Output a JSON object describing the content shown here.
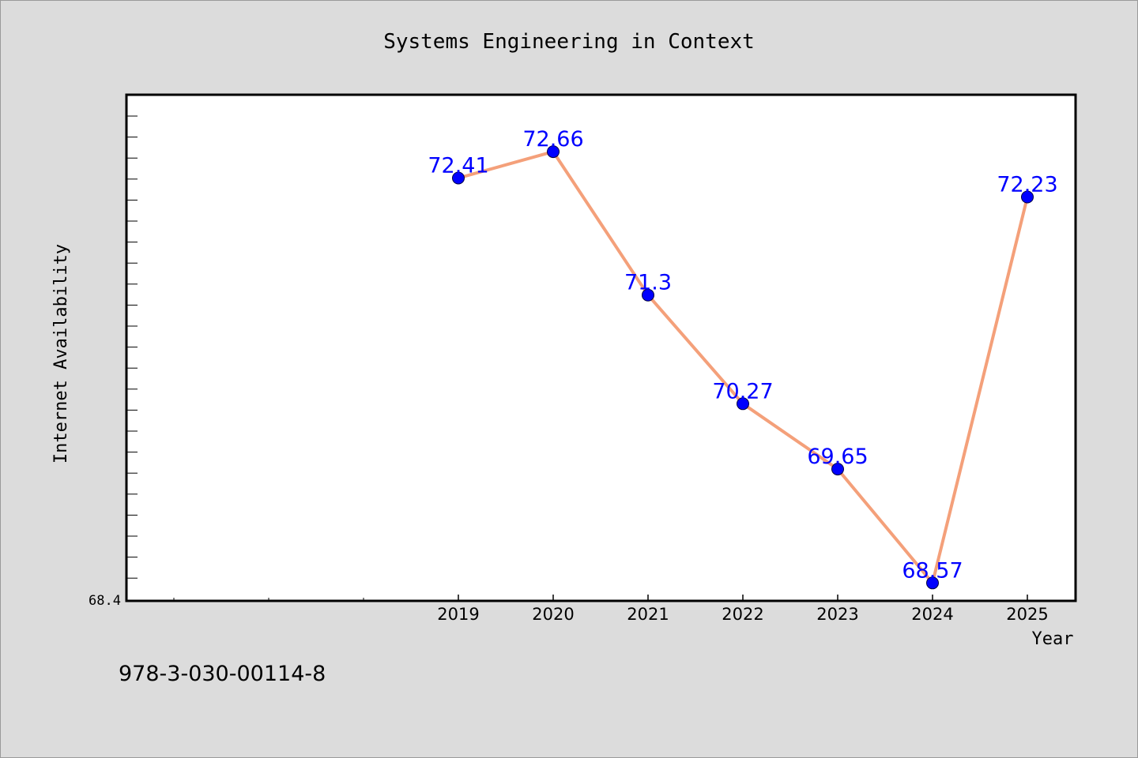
{
  "chart_data": {
    "type": "line",
    "title": "Systems Engineering in Context",
    "xlabel": "Year",
    "ylabel": "Internet Availability",
    "categories": [
      "2019",
      "2020",
      "2021",
      "2022",
      "2023",
      "2024",
      "2025"
    ],
    "series": [
      {
        "values": [
          72.41,
          72.66,
          71.3,
          70.27,
          69.65,
          68.57,
          72.23
        ],
        "data_labels": [
          "72.41",
          "72.66",
          "71.3",
          "70.27",
          "69.65",
          "68.57",
          "72.23"
        ]
      }
    ],
    "ylim": [
      68.4,
      73.2
    ],
    "ytick_labels": [
      "68.4"
    ],
    "grid": false,
    "legend": "none",
    "line_color": "#f4a07a",
    "marker_color": "#0000ff",
    "label_color": "#0000ff"
  },
  "footer": {
    "isbn": "978-3-030-00114-8"
  }
}
